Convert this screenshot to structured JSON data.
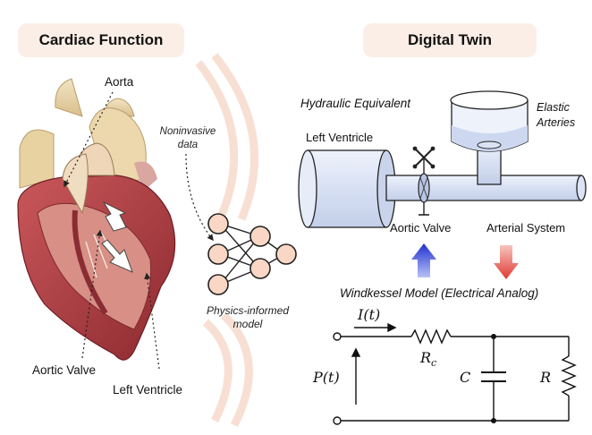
{
  "left_panel": {
    "title": "Cardiac Function"
  },
  "right_panel": {
    "title": "Digital Twin"
  },
  "heart_labels": {
    "aorta": "Aorta",
    "aortic_valve": "Aortic Valve",
    "left_ventricle": "Left Ventricle"
  },
  "data_note": {
    "line1": "Noninvasive",
    "line2": "data"
  },
  "nn_note": {
    "line1": "Physics-informed",
    "line2": "model"
  },
  "hydraulic": {
    "title": "Hydraulic Equivalent",
    "left_ventricle": "Left Ventricle",
    "elastic_line1": "Elastic",
    "elastic_line2": "Arteries",
    "aortic_valve": "Aortic Valve",
    "arterial_system": "Arterial System"
  },
  "windkessel": {
    "title": "Windkessel Model (Electrical Analog)",
    "current": "I(t)",
    "pressure": "P(t)",
    "rc_base": "R",
    "rc_sub": "c",
    "capacitor": "C",
    "resistor": "R"
  },
  "colors": {
    "pill_bg": "#fbeee6",
    "heart_red": "#a8343a",
    "tube_blue": "#dde6f6",
    "node_fill": "#fad7c4",
    "arrow_blue": "#2b3fd6",
    "arrow_red": "#e2403a"
  }
}
